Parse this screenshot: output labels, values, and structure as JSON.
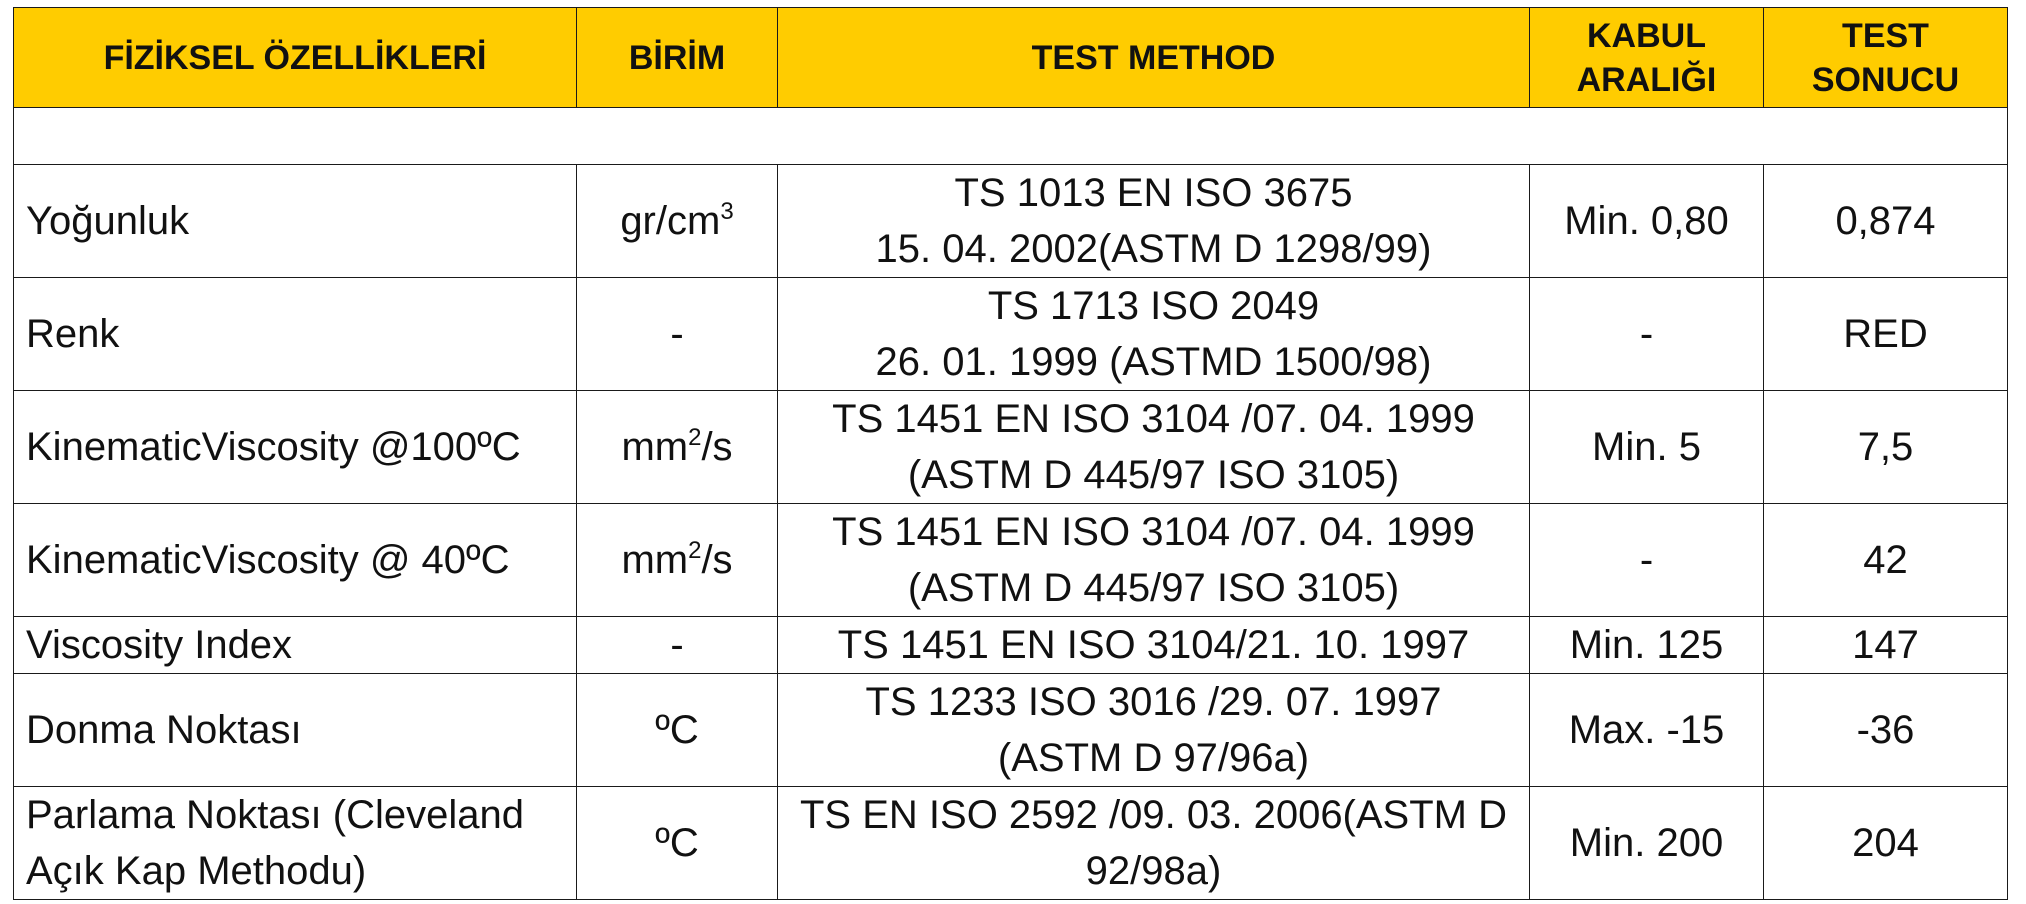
{
  "headers": {
    "property": "FİZİKSEL ÖZELLİKLERİ",
    "unit": "BİRİM",
    "method": "TEST METHOD",
    "range_line1": "KABUL",
    "range_line2": "ARALIĞI",
    "result_line1": "TEST",
    "result_line2": "SONUCU"
  },
  "rows": [
    {
      "property": "Yoğunluk",
      "unit_base": "gr/cm",
      "unit_sup": "3",
      "unit_tail": "",
      "method_line1": "TS 1013 EN ISO 3675",
      "method_line2": "15. 04. 2002(ASTM D 1298/99)",
      "range": "Min. 0,80",
      "result": "0,874"
    },
    {
      "property": "Renk",
      "unit_base": "-",
      "unit_sup": "",
      "unit_tail": "",
      "method_line1": "TS 1713 ISO 2049",
      "method_line2": "26. 01. 1999 (ASTMD 1500/98)",
      "range": "-",
      "result": "RED"
    },
    {
      "property": "KinematicViscosity @100ºC",
      "unit_base": "mm",
      "unit_sup": "2",
      "unit_tail": "/s",
      "method_line1": "TS 1451 EN ISO 3104 /07. 04. 1999",
      "method_line2": "(ASTM D 445/97 ISO 3105)",
      "range": "Min. 5",
      "result": "7,5"
    },
    {
      "property": "KinematicViscosity @ 40ºC",
      "unit_base": "mm",
      "unit_sup": "2",
      "unit_tail": "/s",
      "method_line1": "TS 1451 EN ISO 3104 /07. 04. 1999",
      "method_line2": "(ASTM D 445/97 ISO 3105)",
      "range": "-",
      "result": "42"
    },
    {
      "property": "Viscosity Index",
      "unit_base": "-",
      "unit_sup": "",
      "unit_tail": "",
      "method_line1": "TS 1451 EN ISO 3104/21. 10. 1997",
      "method_line2": "",
      "range": "Min. 125",
      "result": "147"
    },
    {
      "property": "Donma Noktası",
      "unit_base": "ºC",
      "unit_sup": "",
      "unit_tail": "",
      "method_line1": "TS 1233 ISO 3016 /29. 07. 1997",
      "method_line2": "(ASTM D 97/96a)",
      "range": "Max. -15",
      "result": "-36"
    },
    {
      "property_line1": "Parlama Noktası (Cleveland",
      "property_line2": "Açık Kap Methodu)",
      "unit_base": "ºC",
      "unit_sup": "",
      "unit_tail": "",
      "method_line1": "TS EN ISO 2592 /09. 03. 2006(ASTM D",
      "method_line2": "92/98a)",
      "range": "Min. 200",
      "result": "204"
    }
  ],
  "colors": {
    "header_background": "#ffcc00",
    "border": "#1a1a1a"
  }
}
